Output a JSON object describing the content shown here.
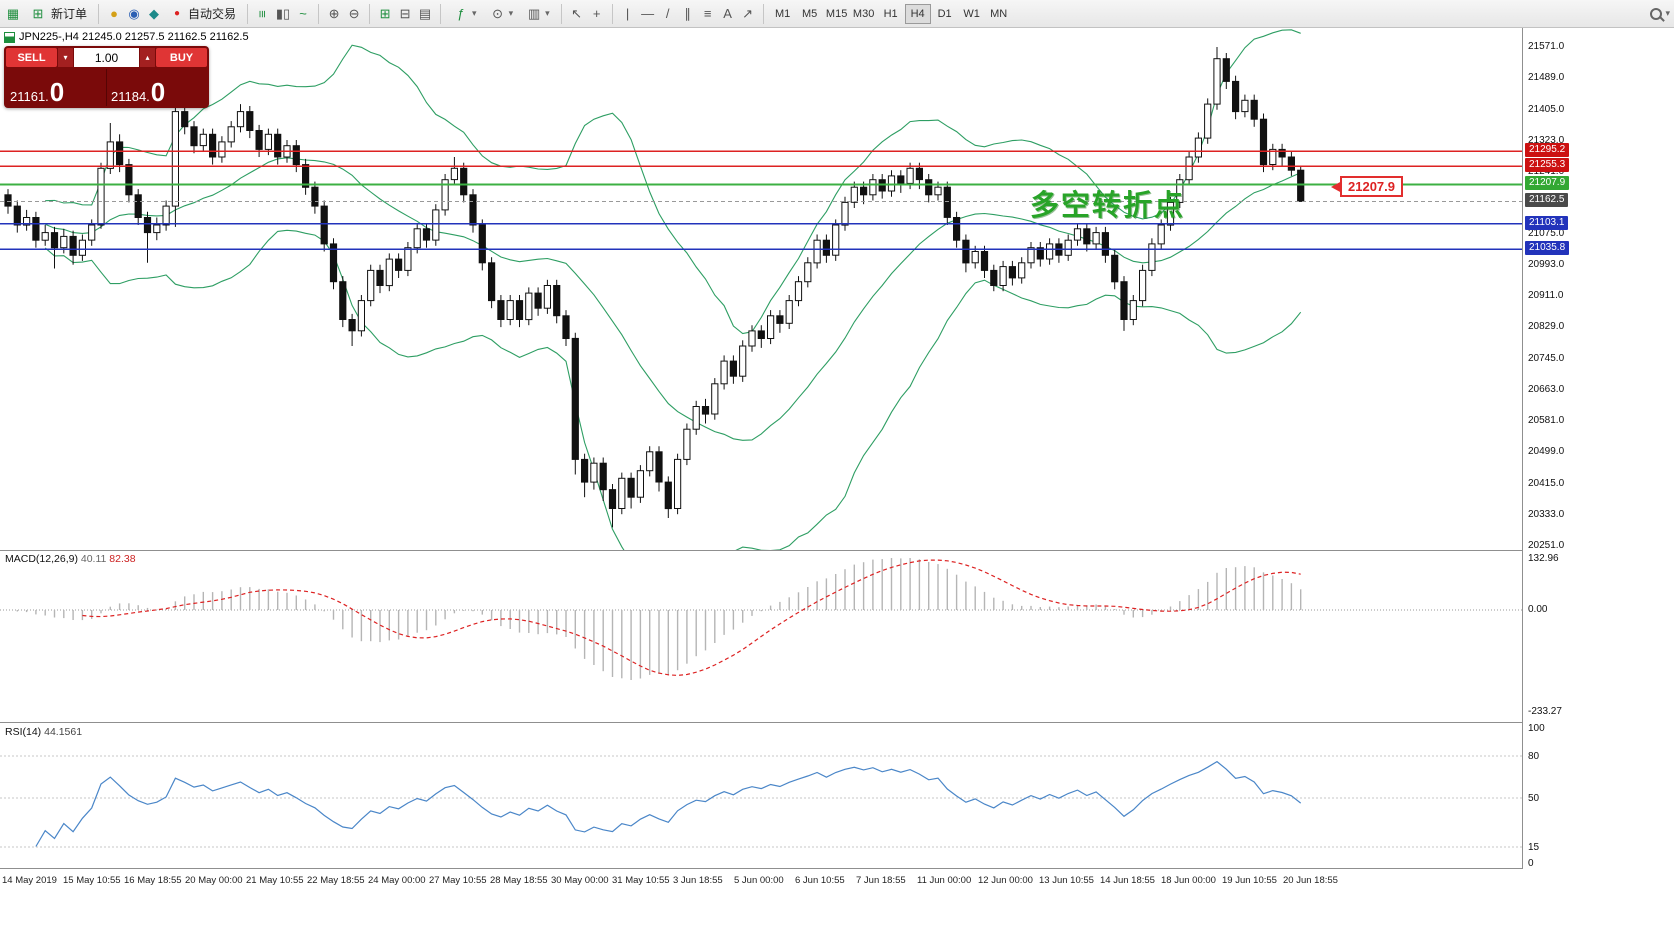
{
  "colors": {
    "accent_red": "#cc1111",
    "green_line": "#3cb043",
    "blue_line": "#2233bb",
    "band_green": "#2e9e63",
    "panel_maroon": "#7a0a0a",
    "button_red": "#e03535",
    "rsi_blue": "#4a86c8",
    "macd_signal": "#dd2222",
    "macd_hist": "#b5b5b5",
    "tag_dark": "#4a4a4a"
  },
  "icons": {
    "app": "▦",
    "new_order": "⊞",
    "coin": "●",
    "community": "◉",
    "news": "◆",
    "autotrade_dot": "●",
    "bars_chart": "≡",
    "candles_chart": "▮▯",
    "line_chart": "~",
    "zoom_in": "⊕",
    "zoom_out": "⊖",
    "tile": "⊞",
    "cascade": "⊟",
    "arrange": "▤",
    "indicators": "ƒ",
    "periods": "⊙",
    "templates": "▥",
    "caret": "▾",
    "caret_up": "▴",
    "cursor": "↖",
    "crosshair": "+",
    "vline": "|",
    "hline": "—",
    "trendline": "/",
    "channel": "∥",
    "fibonacci": "≡",
    "text_tool": "A",
    "arrows_tool": "↗"
  },
  "toolbar": {
    "new_order": "新订单",
    "autotrade": "自动交易",
    "timeframes": [
      "M1",
      "M5",
      "M15",
      "M30",
      "H1",
      "H4",
      "D1",
      "W1",
      "MN"
    ],
    "active_timeframe": "H4"
  },
  "symbol_bar": {
    "text": "JPN225-,H4  21245.0 21257.5 21162.5 21162.5"
  },
  "one_click": {
    "sell_label": "SELL",
    "buy_label": "BUY",
    "volume": "1.00",
    "sell_price_small": "21161.",
    "sell_price_big": "0",
    "buy_price_small": "21184.",
    "buy_price_big": "0"
  },
  "annotation": {
    "text": "多空转折点",
    "color": "#28a428"
  },
  "price_callout": {
    "text": "21207.9"
  },
  "axis": {
    "plain": [
      {
        "p": 21571.0,
        "t": "21571.0"
      },
      {
        "p": 21489.0,
        "t": "21489.0"
      },
      {
        "p": 21405.0,
        "t": "21405.0"
      },
      {
        "p": 21323.0,
        "t": "21323.0"
      },
      {
        "p": 21241.0,
        "t": "21241.0"
      },
      {
        "p": 21075.0,
        "t": "21075.0"
      },
      {
        "p": 20993.0,
        "t": "20993.0"
      },
      {
        "p": 20911.0,
        "t": "20911.0"
      },
      {
        "p": 20829.0,
        "t": "20829.0"
      },
      {
        "p": 20745.0,
        "t": "20745.0"
      },
      {
        "p": 20663.0,
        "t": "20663.0"
      },
      {
        "p": 20581.0,
        "t": "20581.0"
      },
      {
        "p": 20499.0,
        "t": "20499.0"
      },
      {
        "p": 20415.0,
        "t": "20415.0"
      },
      {
        "p": 20333.0,
        "t": "20333.0"
      },
      {
        "p": 20251.0,
        "t": "20251.0"
      }
    ],
    "tags": [
      {
        "p": 21295.2,
        "t": "21295.2",
        "bg": "#cc1111"
      },
      {
        "p": 21255.3,
        "t": "21255.3",
        "bg": "#cc1111"
      },
      {
        "p": 21207.9,
        "t": "21207.9",
        "bg": "#33a833"
      },
      {
        "p": 21162.5,
        "t": "21162.5",
        "bg": "#4a4a4a"
      },
      {
        "p": 21103.1,
        "t": "21103.1",
        "bg": "#2233bb"
      },
      {
        "p": 21035.8,
        "t": "21035.8",
        "bg": "#2233bb"
      }
    ]
  },
  "macd": {
    "name": "MACD(12,26,9)",
    "value1": "40.11",
    "value2": "82.38",
    "axis": [
      "132.96",
      "0.00",
      "-233.27"
    ]
  },
  "rsi": {
    "name": "RSI(14)",
    "value": "44.1561",
    "axis": [
      "100",
      "80",
      "50",
      "15",
      "0"
    ],
    "levels": [
      80,
      50,
      15
    ]
  },
  "time_axis": [
    "14 May 2019",
    "15 May 10:55",
    "16 May 18:55",
    "20 May 00:00",
    "21 May 10:55",
    "22 May 18:55",
    "24 May 00:00",
    "27 May 10:55",
    "28 May 18:55",
    "30 May 00:00",
    "31 May 10:55",
    "3 Jun 18:55",
    "5 Jun 00:00",
    "6 Jun 10:55",
    "7 Jun 18:55",
    "11 Jun 00:00",
    "12 Jun 00:00",
    "13 Jun 10:55",
    "14 Jun 18:55",
    "18 Jun 00:00",
    "19 Jun 10:55",
    "20 Jun 18:55"
  ],
  "chart_data": {
    "type": "candlestick",
    "symbol": "JPN225-",
    "timeframe": "H4",
    "title": "JPN225-,H4",
    "current_ohlc": {
      "open": 21245.0,
      "high": 21257.5,
      "low": 21162.5,
      "close": 21162.5
    },
    "bid": "21161.0",
    "ask": "21184.0",
    "y_axis": {
      "min": 20251.0,
      "max": 21571.0
    },
    "indicators": [
      {
        "name": "Bollinger Bands",
        "period": 20,
        "deviation": 2
      },
      {
        "name": "MACD",
        "params": [
          12,
          26,
          9
        ],
        "values": [
          40.11,
          82.38
        ],
        "range": [
          -233.27,
          132.96
        ]
      },
      {
        "name": "RSI",
        "period": 14,
        "value": 44.1561,
        "range": [
          0,
          100
        ]
      }
    ],
    "levels": [
      {
        "price": 21295.2,
        "color": "#dd2222",
        "width": 1.2,
        "dash": ""
      },
      {
        "price": 21255.3,
        "color": "#dd2222",
        "width": 1.2,
        "dash": ""
      },
      {
        "price": 21207.9,
        "color": "#3cb043",
        "width": 2,
        "dash": ""
      },
      {
        "price": 21162.5,
        "color": "#999999",
        "width": 1,
        "dash": "4,3"
      },
      {
        "price": 21103.1,
        "color": "#2233bb",
        "width": 1.4,
        "dash": ""
      },
      {
        "price": 21035.8,
        "color": "#2233bb",
        "width": 1.4,
        "dash": ""
      }
    ],
    "candles": [
      [
        21180,
        21195,
        21130,
        21150
      ],
      [
        21150,
        21165,
        21080,
        21100
      ],
      [
        21100,
        21140,
        21085,
        21120
      ],
      [
        21120,
        21135,
        21040,
        21060
      ],
      [
        21060,
        21100,
        21045,
        21080
      ],
      [
        21080,
        21095,
        20985,
        21040
      ],
      [
        21040,
        21090,
        21025,
        21070
      ],
      [
        21070,
        21085,
        20995,
        21020
      ],
      [
        21020,
        21075,
        21005,
        21060
      ],
      [
        21060,
        21115,
        21045,
        21100
      ],
      [
        21100,
        21265,
        21090,
        21250
      ],
      [
        21250,
        21370,
        21235,
        21320
      ],
      [
        21320,
        21340,
        21240,
        21260
      ],
      [
        21260,
        21275,
        21160,
        21180
      ],
      [
        21180,
        21195,
        21100,
        21120
      ],
      [
        21120,
        21135,
        21000,
        21080
      ],
      [
        21080,
        21120,
        21060,
        21100
      ],
      [
        21100,
        21165,
        21085,
        21150
      ],
      [
        21150,
        21425,
        21095,
        21400
      ],
      [
        21400,
        21415,
        21340,
        21360
      ],
      [
        21360,
        21375,
        21290,
        21310
      ],
      [
        21310,
        21355,
        21295,
        21340
      ],
      [
        21340,
        21355,
        21260,
        21280
      ],
      [
        21280,
        21335,
        21265,
        21320
      ],
      [
        21320,
        21375,
        21305,
        21360
      ],
      [
        21360,
        21420,
        21345,
        21400
      ],
      [
        21400,
        21415,
        21330,
        21350
      ],
      [
        21350,
        21365,
        21280,
        21300
      ],
      [
        21300,
        21355,
        21285,
        21340
      ],
      [
        21340,
        21355,
        21260,
        21280
      ],
      [
        21280,
        21325,
        21265,
        21310
      ],
      [
        21310,
        21325,
        21240,
        21260
      ],
      [
        21260,
        21275,
        21180,
        21200
      ],
      [
        21200,
        21215,
        21130,
        21150
      ],
      [
        21150,
        21165,
        21030,
        21050
      ],
      [
        21050,
        21065,
        20930,
        20950
      ],
      [
        20950,
        20965,
        20830,
        20850
      ],
      [
        20850,
        20865,
        20780,
        20820
      ],
      [
        20820,
        20915,
        20805,
        20900
      ],
      [
        20900,
        20995,
        20885,
        20980
      ],
      [
        20980,
        20995,
        20920,
        20940
      ],
      [
        20940,
        21025,
        20925,
        21010
      ],
      [
        21010,
        21025,
        20960,
        20980
      ],
      [
        20980,
        21055,
        20965,
        21040
      ],
      [
        21040,
        21105,
        21025,
        21090
      ],
      [
        21090,
        21105,
        21040,
        21060
      ],
      [
        21060,
        21155,
        21045,
        21140
      ],
      [
        21140,
        21235,
        21125,
        21220
      ],
      [
        21220,
        21280,
        21205,
        21250
      ],
      [
        21250,
        21265,
        21160,
        21180
      ],
      [
        21180,
        21195,
        21080,
        21100
      ],
      [
        21100,
        21115,
        20980,
        21000
      ],
      [
        21000,
        21015,
        20880,
        20900
      ],
      [
        20900,
        20915,
        20830,
        20850
      ],
      [
        20850,
        20915,
        20835,
        20900
      ],
      [
        20900,
        20915,
        20830,
        20850
      ],
      [
        20850,
        20935,
        20835,
        20920
      ],
      [
        20920,
        20935,
        20860,
        20880
      ],
      [
        20880,
        20955,
        20865,
        20940
      ],
      [
        20940,
        20955,
        20840,
        20860
      ],
      [
        20860,
        20875,
        20780,
        20800
      ],
      [
        20800,
        20815,
        20440,
        20480
      ],
      [
        20480,
        20495,
        20380,
        20420
      ],
      [
        20420,
        20485,
        20400,
        20470
      ],
      [
        20470,
        20485,
        20370,
        20400
      ],
      [
        20400,
        20415,
        20300,
        20350
      ],
      [
        20350,
        20445,
        20335,
        20430
      ],
      [
        20430,
        20445,
        20350,
        20380
      ],
      [
        20380,
        20465,
        20365,
        20450
      ],
      [
        20450,
        20515,
        20435,
        20500
      ],
      [
        20500,
        20515,
        20395,
        20420
      ],
      [
        20420,
        20435,
        20325,
        20350
      ],
      [
        20350,
        20495,
        20335,
        20480
      ],
      [
        20480,
        20575,
        20465,
        20560
      ],
      [
        20560,
        20635,
        20545,
        20620
      ],
      [
        20620,
        20640,
        20575,
        20600
      ],
      [
        20600,
        20695,
        20585,
        20680
      ],
      [
        20680,
        20755,
        20665,
        20740
      ],
      [
        20740,
        20755,
        20680,
        20700
      ],
      [
        20700,
        20795,
        20685,
        20780
      ],
      [
        20780,
        20835,
        20765,
        20820
      ],
      [
        20820,
        20835,
        20775,
        20800
      ],
      [
        20800,
        20875,
        20785,
        20860
      ],
      [
        20860,
        20875,
        20815,
        20840
      ],
      [
        20840,
        20915,
        20825,
        20900
      ],
      [
        20900,
        20965,
        20885,
        20950
      ],
      [
        20950,
        21015,
        20935,
        21000
      ],
      [
        21000,
        21075,
        20985,
        21060
      ],
      [
        21060,
        21075,
        21000,
        21020
      ],
      [
        21020,
        21115,
        21005,
        21100
      ],
      [
        21100,
        21175,
        21085,
        21160
      ],
      [
        21160,
        21215,
        21145,
        21200
      ],
      [
        21200,
        21215,
        21155,
        21180
      ],
      [
        21180,
        21235,
        21165,
        21220
      ],
      [
        21220,
        21235,
        21170,
        21190
      ],
      [
        21190,
        21245,
        21175,
        21230
      ],
      [
        21230,
        21245,
        21185,
        21210
      ],
      [
        21210,
        21265,
        21195,
        21250
      ],
      [
        21250,
        21265,
        21195,
        21220
      ],
      [
        21220,
        21235,
        21160,
        21180
      ],
      [
        21180,
        21215,
        21165,
        21200
      ],
      [
        21200,
        21215,
        21100,
        21120
      ],
      [
        21120,
        21135,
        21040,
        21060
      ],
      [
        21060,
        21075,
        20975,
        21000
      ],
      [
        21000,
        21045,
        20985,
        21030
      ],
      [
        21030,
        21045,
        20960,
        20980
      ],
      [
        20980,
        20995,
        20925,
        20940
      ],
      [
        20940,
        21005,
        20925,
        20990
      ],
      [
        20990,
        21005,
        20940,
        20960
      ],
      [
        20960,
        21015,
        20945,
        21000
      ],
      [
        21000,
        21055,
        20985,
        21040
      ],
      [
        21040,
        21055,
        20990,
        21010
      ],
      [
        21010,
        21065,
        20995,
        21050
      ],
      [
        21050,
        21065,
        21000,
        21020
      ],
      [
        21020,
        21075,
        21005,
        21060
      ],
      [
        21060,
        21105,
        21045,
        21090
      ],
      [
        21090,
        21105,
        21030,
        21050
      ],
      [
        21050,
        21095,
        21035,
        21080
      ],
      [
        21080,
        21095,
        21000,
        21020
      ],
      [
        21020,
        21035,
        20930,
        20950
      ],
      [
        20950,
        20965,
        20820,
        20850
      ],
      [
        20850,
        20915,
        20835,
        20900
      ],
      [
        20900,
        20995,
        20885,
        20980
      ],
      [
        20980,
        21065,
        20965,
        21050
      ],
      [
        21050,
        21115,
        21035,
        21100
      ],
      [
        21100,
        21175,
        21085,
        21160
      ],
      [
        21160,
        21235,
        21145,
        21220
      ],
      [
        21220,
        21295,
        21205,
        21280
      ],
      [
        21280,
        21345,
        21265,
        21330
      ],
      [
        21330,
        21435,
        21315,
        21420
      ],
      [
        21420,
        21571,
        21405,
        21540
      ],
      [
        21540,
        21555,
        21460,
        21480
      ],
      [
        21480,
        21495,
        21380,
        21400
      ],
      [
        21400,
        21445,
        21385,
        21430
      ],
      [
        21430,
        21445,
        21360,
        21380
      ],
      [
        21380,
        21395,
        21240,
        21260
      ],
      [
        21260,
        21315,
        21245,
        21300
      ],
      [
        21300,
        21315,
        21255,
        21280
      ],
      [
        21280,
        21295,
        21230,
        21245
      ],
      [
        21245,
        21257.5,
        21162.5,
        21162.5
      ]
    ]
  }
}
